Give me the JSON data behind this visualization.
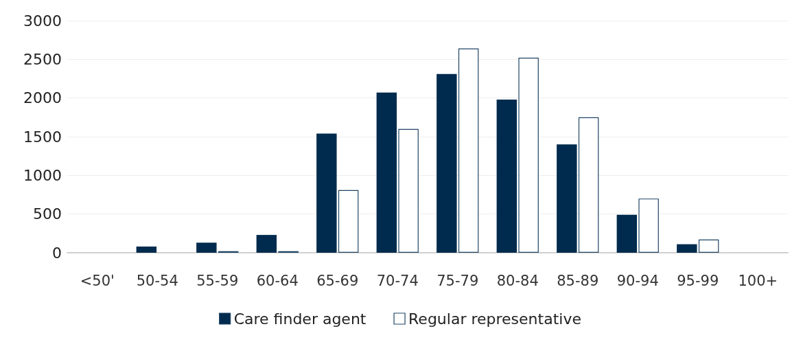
{
  "chart_data": {
    "type": "bar",
    "categories": [
      "<50'",
      "50-54",
      "55-59",
      "60-64",
      "65-69",
      "70-74",
      "75-79",
      "80-84",
      "85-89",
      "90-94",
      "95-99",
      "100+"
    ],
    "series": [
      {
        "name": "Care finder agent",
        "color": "#002b4e",
        "values": [
          0,
          80,
          130,
          230,
          1540,
          2070,
          2310,
          1980,
          1400,
          490,
          110,
          0
        ]
      },
      {
        "name": "Regular representative",
        "color": "#ffffff",
        "values": [
          0,
          0,
          20,
          20,
          810,
          1600,
          2640,
          2520,
          1750,
          700,
          170,
          0
        ]
      }
    ],
    "ylim": [
      0,
      3000
    ],
    "yticks": [
      0,
      500,
      1000,
      1500,
      2000,
      2500,
      3000
    ],
    "grid": "y",
    "legend": "bottom"
  }
}
